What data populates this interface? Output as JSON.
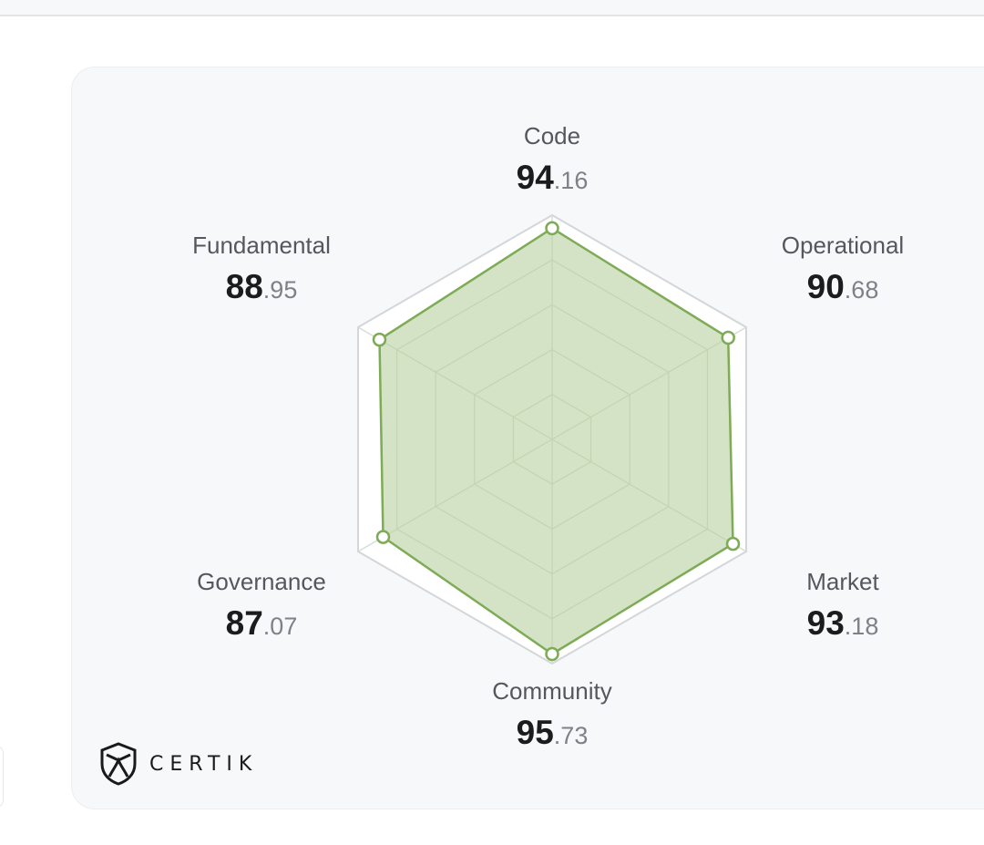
{
  "brand": {
    "name": "CERTIK"
  },
  "colors": {
    "fill": "#cfe0bf",
    "stroke": "#7eab55",
    "grid": "#d9dcd5",
    "outer_hexagon": "#d4d6d9"
  },
  "chart_data": {
    "type": "radar",
    "scale_max": 100,
    "axes": [
      {
        "name": "Code",
        "value": 94.16,
        "int": "94",
        "frac": ".16"
      },
      {
        "name": "Operational",
        "value": 90.68,
        "int": "90",
        "frac": ".68"
      },
      {
        "name": "Market",
        "value": 93.18,
        "int": "93",
        "frac": ".18"
      },
      {
        "name": "Community",
        "value": 95.73,
        "int": "95",
        "frac": ".73"
      },
      {
        "name": "Governance",
        "value": 87.07,
        "int": "87",
        "frac": ".07"
      },
      {
        "name": "Fundamental",
        "value": 88.95,
        "int": "88",
        "frac": ".95"
      }
    ]
  }
}
